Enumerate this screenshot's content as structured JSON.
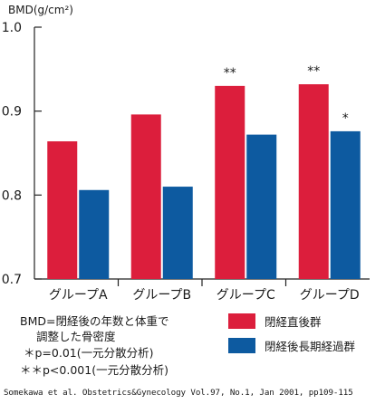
{
  "chart_data": {
    "type": "bar",
    "ylabel": "BMD(g/cm²)",
    "categories": [
      "グループA",
      "グループB",
      "グループC",
      "グループD"
    ],
    "y_ticks": [
      "0.7",
      "0.8",
      "0.9",
      "1.0"
    ],
    "ylim": [
      0.7,
      1.0
    ],
    "series": [
      {
        "name": "閉経直後群",
        "color": "#dc1e3c",
        "values": [
          0.864,
          0.896,
          0.93,
          0.932
        ],
        "annotations": [
          "",
          "",
          "**",
          "**"
        ]
      },
      {
        "name": "閉経後長期経過群",
        "color": "#0d5aa0",
        "values": [
          0.806,
          0.81,
          0.872,
          0.876
        ],
        "annotations": [
          "",
          "",
          "",
          "*"
        ]
      }
    ],
    "notes": [
      "BMD=閉経後の年数と体重で",
      "調整した骨密度",
      "＊p=0.01(一元分散分析)",
      "＊＊p<0.001(一元分散分析)"
    ],
    "source": "Somekawa et al. Obstetrics&Gynecology Vol.97, No.1, Jan 2001, pp109-115"
  }
}
